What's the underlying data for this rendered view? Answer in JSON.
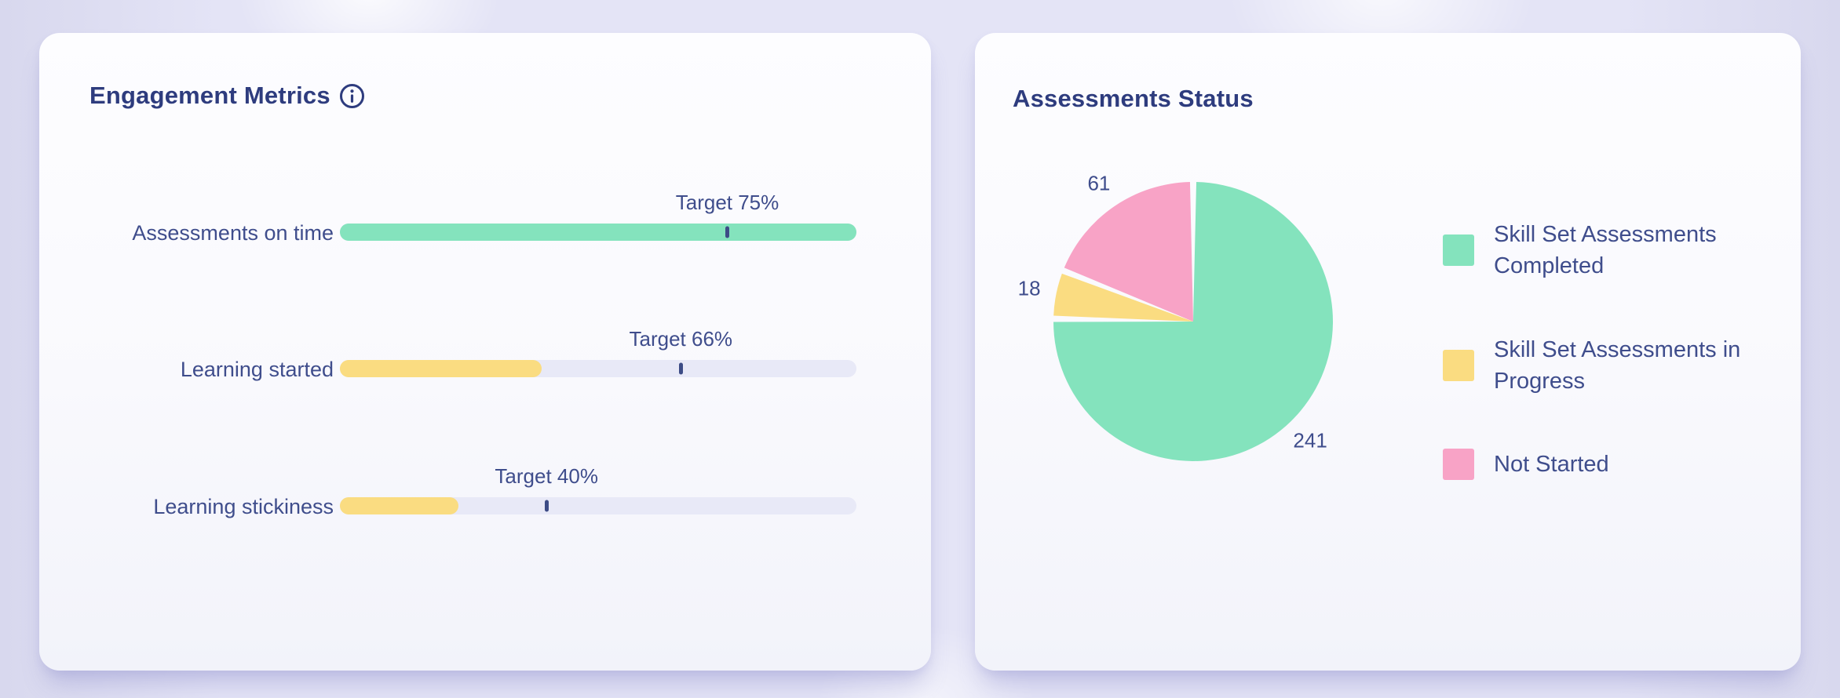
{
  "engagement_card": {
    "title": "Engagement Metrics",
    "metrics": [
      {
        "label": "Assessments on time",
        "target_label": "Target 75%"
      },
      {
        "label": "Learning started",
        "target_label": "Target 66%"
      },
      {
        "label": "Learning stickiness",
        "target_label": "Target 40%"
      }
    ]
  },
  "assessments_card": {
    "title": "Assessments Status",
    "legend": [
      {
        "label": "Skill Set Assessments Completed"
      },
      {
        "label": "Skill Set Assessments in Progress"
      },
      {
        "label": "Not Started"
      }
    ]
  },
  "chart_data": [
    {
      "type": "bar",
      "title": "Engagement Metrics",
      "orientation": "horizontal",
      "categories": [
        "Assessments on time",
        "Learning started",
        "Learning stickiness"
      ],
      "series": [
        {
          "name": "actual",
          "values": [
            100,
            39,
            23
          ],
          "unit": "%"
        },
        {
          "name": "target",
          "values": [
            75,
            66,
            40
          ],
          "unit": "%"
        }
      ],
      "target_annotations": [
        "Target 75%",
        "Target 66%",
        "Target 40%"
      ],
      "xlim": [
        0,
        100
      ],
      "grid": false,
      "colors": {
        "fills": [
          "#84e3bd",
          "#fadc81",
          "#fadc81"
        ],
        "track": "#e8e9f7",
        "target_tick": "#3d4c86"
      }
    },
    {
      "type": "pie",
      "title": "Assessments Status",
      "categories": [
        "Skill Set Assessments Completed",
        "Skill Set Assessments in Progress",
        "Not Started"
      ],
      "values": [
        241,
        18,
        61
      ],
      "data_labels": [
        "241",
        "18",
        "61"
      ],
      "colors": [
        "#84e3bd",
        "#fadc81",
        "#f8a3c6"
      ],
      "start_angle_deg": 0,
      "direction": "clockwise",
      "legend_position": "right"
    }
  ],
  "theme": {
    "title_color": "#2e3c7e",
    "label_color": "#3f4d8c",
    "page_bg": "#e4e4f6",
    "card_bg": "#fbfbfe",
    "green": "#84e3bd",
    "yellow": "#fadc81",
    "pink": "#f8a3c6",
    "track": "#e8e9f7"
  }
}
